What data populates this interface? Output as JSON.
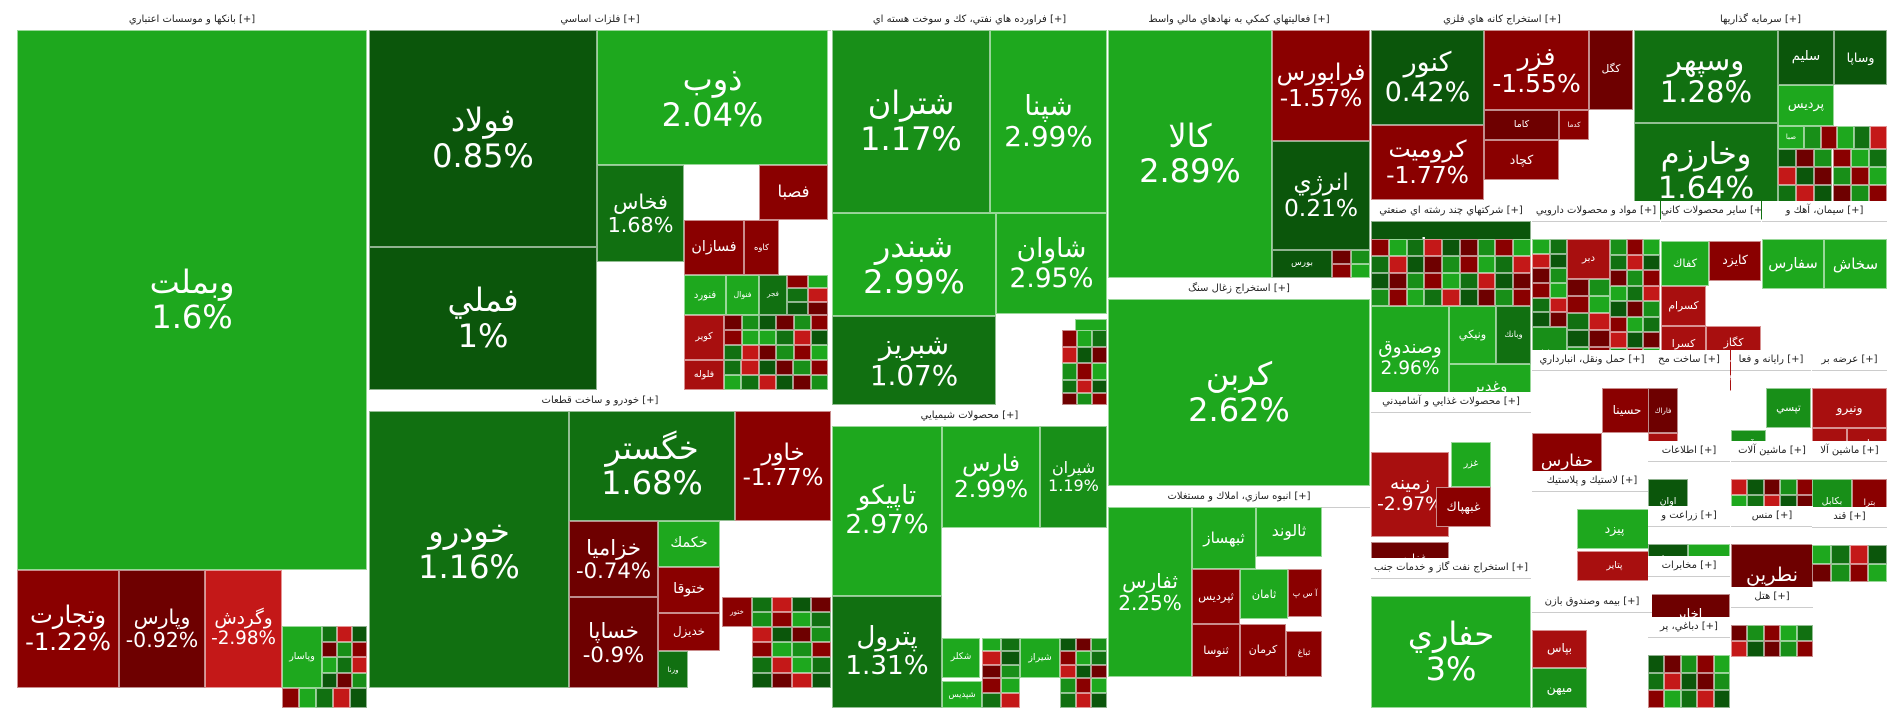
{
  "chart_data": {
    "type": "treemap",
    "title": "Tehran Stock Exchange market map by sector",
    "colors": {
      "up_strong": "#1ea81e",
      "up_mid": "#188f18",
      "up": "#117011",
      "up_weak": "#0b560b",
      "down_weak": "#6e0000",
      "down": "#8a0000",
      "down_mid": "#a80f0f",
      "down_strong": "#c41818",
      "flat": "#0c4a0c"
    },
    "sectors": [
      {
        "name": "بانکها و موسسات اعتباري [+]",
        "tiles": [
          {
            "name": "وبملت",
            "pct": "1.6%",
            "c": "up_strong"
          },
          {
            "name": "وتجارت",
            "pct": "-1.22%",
            "c": "down"
          },
          {
            "name": "وپارس",
            "pct": "-0.92%",
            "c": "down_weak"
          },
          {
            "name": "وگردش",
            "pct": "-2.98%",
            "c": "down_strong"
          },
          {
            "name": "وپاسار",
            "pct": "",
            "c": "up_strong"
          }
        ]
      },
      {
        "name": "فلزات اساسي [+]",
        "tiles": [
          {
            "name": "فولاد",
            "pct": "0.85%",
            "c": "up_weak"
          },
          {
            "name": "فملي",
            "pct": "1%",
            "c": "up_weak"
          },
          {
            "name": "ذوب",
            "pct": "2.04%",
            "c": "up_strong"
          },
          {
            "name": "فخاس",
            "pct": "1.68%",
            "c": "up"
          },
          {
            "name": "فصبا",
            "pct": "",
            "c": "down"
          },
          {
            "name": "فسازان",
            "pct": "",
            "c": "down"
          },
          {
            "name": "کاوه",
            "pct": "",
            "c": "down"
          },
          {
            "name": "فنورد",
            "pct": "",
            "c": "up_strong"
          },
          {
            "name": "فنوال",
            "pct": "",
            "c": "up_strong"
          },
          {
            "name": "فجر",
            "pct": "",
            "c": "up"
          },
          {
            "name": "کوير",
            "pct": "",
            "c": "down_mid"
          },
          {
            "name": "فلوله",
            "pct": "",
            "c": "down_mid"
          },
          {
            "name": "فماك",
            "pct": "",
            "c": "up_strong"
          }
        ]
      },
      {
        "name": "خودرو و ساخت قطعات [+]",
        "tiles": [
          {
            "name": "خودرو",
            "pct": "1.16%",
            "c": "up"
          },
          {
            "name": "خگستر",
            "pct": "1.68%",
            "c": "up"
          },
          {
            "name": "خاور",
            "pct": "-1.77%",
            "c": "down"
          },
          {
            "name": "خزامیا",
            "pct": "-0.74%",
            "c": "down_weak"
          },
          {
            "name": "خساپا",
            "pct": "-0.9%",
            "c": "down_weak"
          },
          {
            "name": "خكمك",
            "pct": "",
            "c": "up_strong"
          },
          {
            "name": "ختوقا",
            "pct": "",
            "c": "down"
          },
          {
            "name": "خديزل",
            "pct": "",
            "c": "down"
          },
          {
            "name": "ختور",
            "pct": "",
            "c": "down"
          },
          {
            "name": "ورنا",
            "pct": "",
            "c": "up"
          }
        ]
      },
      {
        "name": "فراورده هاي نفتي، كك و سوخت هسته اي [+]",
        "tiles": [
          {
            "name": "شتران",
            "pct": "1.17%",
            "c": "up_mid"
          },
          {
            "name": "شپنا",
            "pct": "2.99%",
            "c": "up_strong"
          },
          {
            "name": "شبندر",
            "pct": "2.99%",
            "c": "up_strong"
          },
          {
            "name": "شاوان",
            "pct": "2.95%",
            "c": "up_strong"
          },
          {
            "name": "شبريز",
            "pct": "1.07%",
            "c": "up"
          },
          {
            "name": "شراز",
            "pct": "",
            "c": "up_strong"
          }
        ]
      },
      {
        "name": "محصولات شيميايي [+]",
        "tiles": [
          {
            "name": "تاپيكو",
            "pct": "2.97%",
            "c": "up_strong"
          },
          {
            "name": "فارس",
            "pct": "2.99%",
            "c": "up_strong"
          },
          {
            "name": "شيران",
            "pct": "1.19%",
            "c": "up_mid"
          },
          {
            "name": "پترول",
            "pct": "1.31%",
            "c": "up"
          },
          {
            "name": "شكلر",
            "pct": "",
            "c": "up_strong"
          },
          {
            "name": "شيراز",
            "pct": "",
            "c": "up_strong"
          },
          {
            "name": "شپديس",
            "pct": "",
            "c": "up_strong"
          }
        ]
      },
      {
        "name": "فعاليتهاي كمكي به نهادهاي مالي واسط [+]",
        "tiles": [
          {
            "name": "كالا",
            "pct": "2.89%",
            "c": "up_strong"
          },
          {
            "name": "فرابورس",
            "pct": "-1.57%",
            "c": "down"
          },
          {
            "name": "انرژي",
            "pct": "0.21%",
            "c": "up_weak"
          },
          {
            "name": "بورس",
            "pct": "",
            "c": "up_weak"
          }
        ]
      },
      {
        "name": "استخراج زغال سنگ [+]",
        "tiles": [
          {
            "name": "كربن",
            "pct": "2.62%",
            "c": "up_strong"
          }
        ]
      },
      {
        "name": "انبوه سازي، املاك و مستغلات [+]",
        "tiles": [
          {
            "name": "ثفارس",
            "pct": "2.25%",
            "c": "up_strong"
          },
          {
            "name": "ثبهساز",
            "pct": "",
            "c": "up_strong"
          },
          {
            "name": "ثالوند",
            "pct": "",
            "c": "up_strong"
          },
          {
            "name": "ثپرديس",
            "pct": "",
            "c": "down"
          },
          {
            "name": "ثامان",
            "pct": "",
            "c": "up_strong"
          },
          {
            "name": "آ س پ",
            "pct": "",
            "c": "down"
          },
          {
            "name": "ثنوسا",
            "pct": "",
            "c": "down"
          },
          {
            "name": "كرمان",
            "pct": "",
            "c": "down"
          },
          {
            "name": "ثباغ",
            "pct": "",
            "c": "down"
          }
        ]
      },
      {
        "name": "استخراج كانه هاي فلزي [+]",
        "tiles": [
          {
            "name": "كنور",
            "pct": "0.42%",
            "c": "up_weak"
          },
          {
            "name": "فزر",
            "pct": "-1.55%",
            "c": "down"
          },
          {
            "name": "كگل",
            "pct": "",
            "c": "down_weak"
          },
          {
            "name": "كروميت",
            "pct": "-1.77%",
            "c": "down"
          },
          {
            "name": "كاما",
            "pct": "",
            "c": "down_weak"
          },
          {
            "name": "كدما",
            "pct": "",
            "c": "down"
          },
          {
            "name": "كچاد",
            "pct": "",
            "c": "down"
          }
        ]
      },
      {
        "name": "سرمايه گذاريها [+]",
        "tiles": [
          {
            "name": "وسپهر",
            "pct": "1.28%",
            "c": "up"
          },
          {
            "name": "سليم",
            "pct": "",
            "c": "up_weak"
          },
          {
            "name": "وساپا",
            "pct": "",
            "c": "up_weak"
          },
          {
            "name": "پرديس",
            "pct": "",
            "c": "up_strong"
          },
          {
            "name": "وخارزم",
            "pct": "1.64%",
            "c": "up"
          },
          {
            "name": "صبا",
            "pct": "",
            "c": "up_strong"
          }
        ]
      },
      {
        "name": "شركتهاي چند رشته اي صنعتي [+]",
        "tiles": [
          {
            "name": "شستا",
            "pct": "0.55%",
            "c": "up_weak"
          },
          {
            "name": "وصندوق",
            "pct": "2.96%",
            "c": "up_strong"
          },
          {
            "name": "ونيكي",
            "pct": "",
            "c": "up_strong"
          },
          {
            "name": "وبانك",
            "pct": "",
            "c": "up"
          },
          {
            "name": "وغدير",
            "pct": "",
            "c": "up_strong"
          }
        ]
      },
      {
        "name": "مواد و محصولات دارويي [+]",
        "tiles": [
          {
            "name": "دفارا",
            "pct": "",
            "c": "up_mid"
          },
          {
            "name": "دبر",
            "pct": "",
            "c": "down_mid"
          }
        ]
      },
      {
        "name": "سایر محصولات کاني [+]",
        "tiles": [
          {
            "name": "كفاك",
            "pct": "",
            "c": "up_strong"
          },
          {
            "name": "كايزد",
            "pct": "",
            "c": "down"
          },
          {
            "name": "كسرام",
            "pct": "",
            "c": "down_mid"
          },
          {
            "name": "كگاز",
            "pct": "",
            "c": "down_mid"
          },
          {
            "name": "كسرا",
            "pct": "",
            "c": "down_mid"
          },
          {
            "name": "كفپا",
            "pct": "",
            "c": "down_mid"
          }
        ]
      },
      {
        "name": "سيمان، آهك و [+]",
        "tiles": [
          {
            "name": "سفارس",
            "pct": "",
            "c": "up_strong"
          },
          {
            "name": "سخاش",
            "pct": "",
            "c": "up_strong"
          }
        ]
      },
      {
        "name": "محصولات غذايي و آشاميدني [+]",
        "tiles": [
          {
            "name": "غزر",
            "pct": "",
            "c": "up_strong"
          },
          {
            "name": "زمینه",
            "pct": "-2.97%",
            "c": "down_mid"
          },
          {
            "name": "غبهپاك",
            "pct": "",
            "c": "down"
          },
          {
            "name": "غفارس",
            "pct": "",
            "c": "down_weak"
          }
        ]
      },
      {
        "name": "استخراج نفت گاز و خدمات جنب [+]",
        "tiles": [
          {
            "name": "حفاري",
            "pct": "3%",
            "c": "up_strong"
          }
        ]
      },
      {
        "name": "حمل ونقل، انبارداري [+]",
        "tiles": [
          {
            "name": "حسينا",
            "pct": "",
            "c": "down"
          },
          {
            "name": "حفارس",
            "pct": "",
            "c": "down"
          }
        ]
      },
      {
        "name": "ساخت مح [+]",
        "tiles": [
          {
            "name": "فاراك",
            "pct": "",
            "c": "down_weak"
          },
          {
            "name": "فاذر",
            "pct": "",
            "c": "down_mid"
          }
        ]
      },
      {
        "name": "رايانه و فعا [+]",
        "tiles": [
          {
            "name": "تپسي",
            "pct": "",
            "c": "up_mid"
          },
          {
            "name": "آپ",
            "pct": "",
            "c": "up_mid"
          }
        ]
      },
      {
        "name": "عرضه بر [+]",
        "tiles": [
          {
            "name": "ونيرو",
            "pct": "",
            "c": "down_mid"
          },
          {
            "name": "بجهرم",
            "pct": "",
            "c": "down_mid"
          },
          {
            "name": "دماوند",
            "pct": "",
            "c": "down_mid"
          }
        ]
      },
      {
        "name": "لاستيك و پلاستيك [+]",
        "tiles": [
          {
            "name": "پيزد",
            "pct": "",
            "c": "up_strong"
          },
          {
            "name": "پتاير",
            "pct": "",
            "c": "down_mid"
          }
        ]
      },
      {
        "name": "اطلاعات [+]",
        "tiles": [
          {
            "name": "اوان",
            "pct": "",
            "c": "up_weak"
          }
        ]
      },
      {
        "name": "ماشين آلات [+]",
        "tiles": []
      },
      {
        "name": "ماشين آلا [+]",
        "tiles": [
          {
            "name": "بكابل",
            "pct": "",
            "c": "up_mid"
          },
          {
            "name": "بترا",
            "pct": "",
            "c": "down"
          }
        ]
      },
      {
        "name": "زراعت و [+]",
        "tiles": [
          {
            "name": "زما",
            "pct": "",
            "c": "up_weak"
          },
          {
            "name": "زفجر",
            "pct": "",
            "c": "up_strong"
          }
        ]
      },
      {
        "name": "مخابرات [+]",
        "tiles": [
          {
            "name": "اخابر",
            "pct": "",
            "c": "down_weak"
          }
        ]
      },
      {
        "name": "منس [+]",
        "tiles": [
          {
            "name": "نطرين",
            "pct": "",
            "c": "down_weak"
          }
        ]
      },
      {
        "name": "بيمه وصندوق بازن [+]",
        "tiles": [
          {
            "name": "بپاس",
            "pct": "",
            "c": "down_mid"
          },
          {
            "name": "ميهن",
            "pct": "",
            "c": "up_mid"
          }
        ]
      },
      {
        "name": "دباغي، پر [+]",
        "tiles": []
      },
      {
        "name": "هتل [+]",
        "tiles": []
      },
      {
        "name": "قند [+]",
        "tiles": []
      },
      {
        "name": "کا [+]",
        "tiles": []
      }
    ]
  }
}
